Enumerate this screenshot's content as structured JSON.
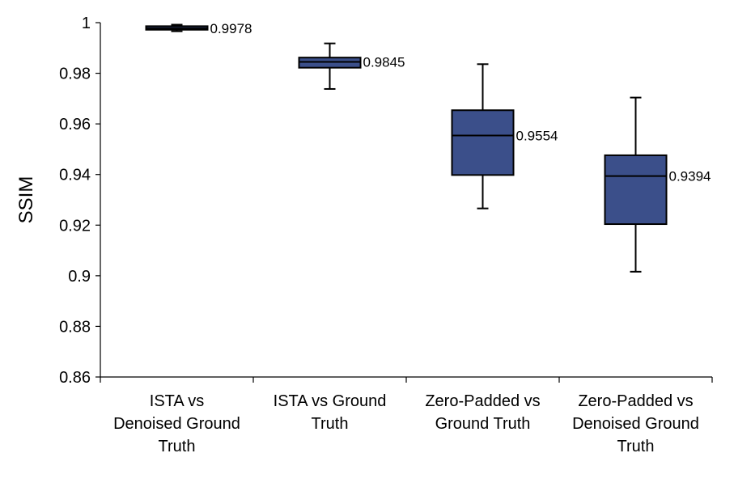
{
  "chart_data": {
    "type": "box",
    "title": "",
    "xlabel": "",
    "ylabel": "SSIM",
    "ylim": [
      0.86,
      1.0
    ],
    "yticks": [
      "1",
      "0.98",
      "0.96",
      "0.94",
      "0.92",
      "0.9",
      "0.88",
      "0.86"
    ],
    "box_color": "#3b4f8a",
    "categories": [
      [
        "ISTA vs",
        "Denoised Ground",
        "Truth"
      ],
      [
        "ISTA vs Ground",
        "Truth"
      ],
      [
        "Zero-Padded vs",
        "Ground Truth"
      ],
      [
        "Zero-Padded vs",
        "Denoised Ground",
        "Truth"
      ]
    ],
    "boxes": [
      {
        "min": 0.9966,
        "q1": 0.9972,
        "median": 0.9978,
        "q3": 0.9986,
        "max": 0.9992,
        "label": "0.9978"
      },
      {
        "min": 0.9738,
        "q1": 0.9822,
        "median": 0.9845,
        "q3": 0.9862,
        "max": 0.9918,
        "label": "0.9845"
      },
      {
        "min": 0.9266,
        "q1": 0.9398,
        "median": 0.9554,
        "q3": 0.9654,
        "max": 0.9836,
        "label": "0.9554"
      },
      {
        "min": 0.9016,
        "q1": 0.9204,
        "median": 0.9394,
        "q3": 0.9476,
        "max": 0.9704,
        "label": "0.9394"
      }
    ]
  }
}
